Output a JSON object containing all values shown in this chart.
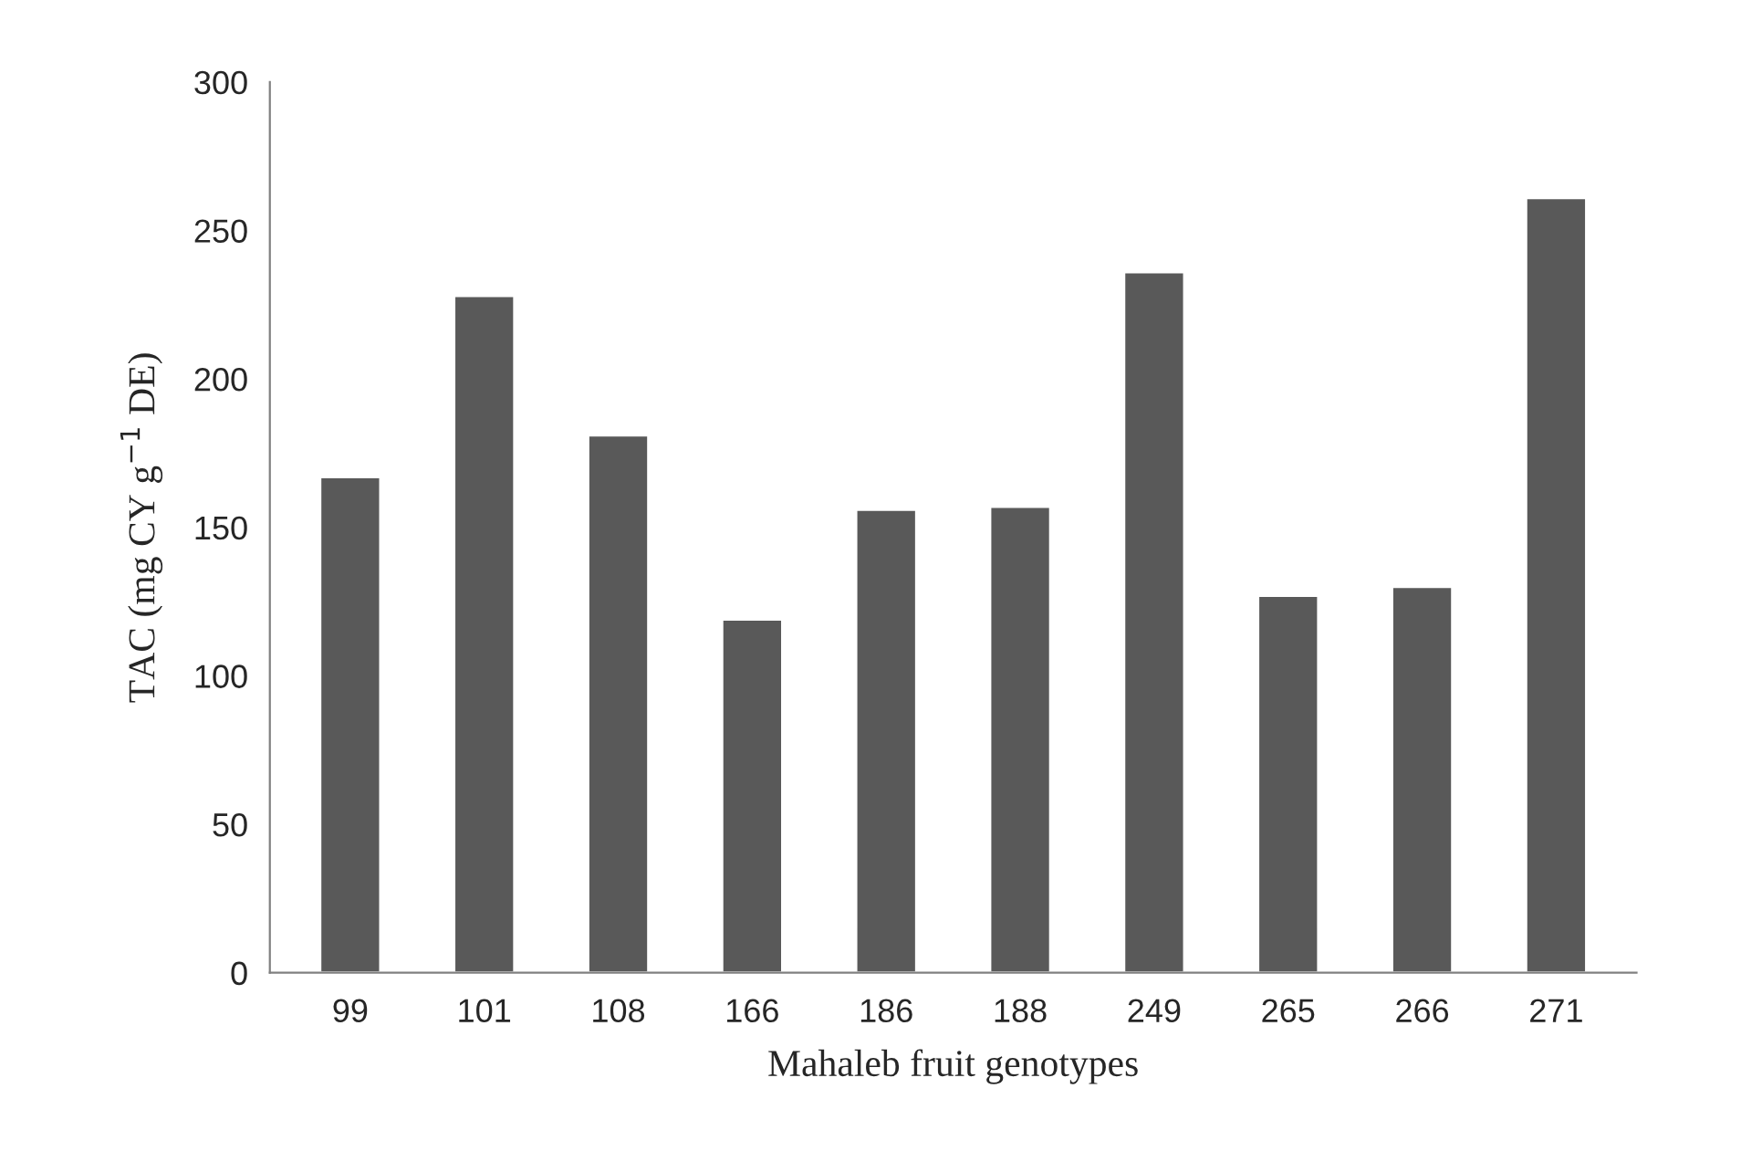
{
  "chart_data": {
    "type": "bar",
    "xlabel": "Mahaleb fruit genotypes",
    "ylabel": "TAC (mg CY g$^{−1}$ DE)",
    "categories": [
      "99",
      "101",
      "108",
      "166",
      "186",
      "188",
      "249",
      "265",
      "266",
      "271"
    ],
    "values": [
      167,
      228,
      181,
      119,
      156,
      157,
      236,
      127,
      130,
      261
    ],
    "color": "#595959",
    "ylim": [
      0,
      300
    ],
    "yticks": [
      0,
      50,
      100,
      150,
      200,
      250,
      300
    ],
    "grid": false,
    "legend": false
  }
}
